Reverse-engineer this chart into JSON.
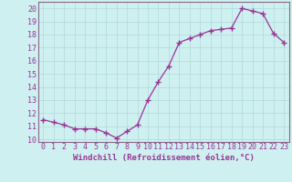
{
  "x": [
    0,
    1,
    2,
    3,
    4,
    5,
    6,
    7,
    8,
    9,
    10,
    11,
    12,
    13,
    14,
    15,
    16,
    17,
    18,
    19,
    20,
    21,
    22,
    23
  ],
  "y": [
    11.5,
    11.3,
    11.1,
    10.8,
    10.8,
    10.8,
    10.5,
    10.1,
    10.6,
    11.1,
    13.0,
    14.4,
    15.6,
    17.4,
    17.7,
    18.0,
    18.3,
    18.4,
    18.5,
    20.0,
    19.8,
    19.6,
    18.1,
    17.4
  ],
  "line_color": "#993399",
  "marker": "+",
  "marker_size": 4,
  "linewidth": 0.9,
  "xlabel": "Windchill (Refroidissement éolien,°C)",
  "xlabel_fontsize": 6.5,
  "ylabel_ticks": [
    10,
    11,
    12,
    13,
    14,
    15,
    16,
    17,
    18,
    19,
    20
  ],
  "ylim": [
    9.8,
    20.5
  ],
  "xlim": [
    -0.5,
    23.5
  ],
  "xtick_labels": [
    "0",
    "1",
    "2",
    "3",
    "4",
    "5",
    "6",
    "7",
    "8",
    "9",
    "10",
    "11",
    "12",
    "13",
    "14",
    "15",
    "16",
    "17",
    "18",
    "19",
    "20",
    "21",
    "22",
    "23"
  ],
  "bg_color": "#cff0f0",
  "grid_color": "#b0d8d8",
  "tick_fontsize": 6,
  "spine_color": "#886688"
}
